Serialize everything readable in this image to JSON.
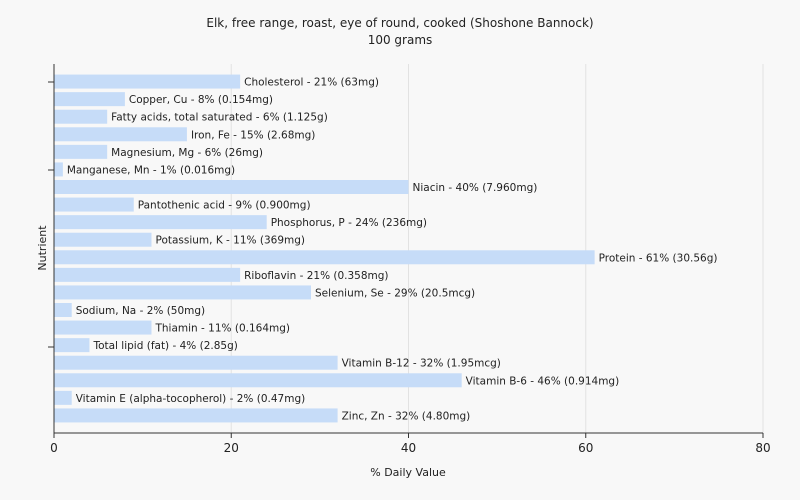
{
  "chart_data": {
    "type": "bar",
    "orientation": "horizontal",
    "title": "Elk, free range, roast, eye of round, cooked (Shoshone Bannock)",
    "subtitle": "100 grams",
    "xlabel": "% Daily Value",
    "ylabel": "Nutrient",
    "xlim": [
      0,
      80
    ],
    "xticks": [
      "0",
      "20",
      "40",
      "60",
      "80"
    ],
    "grid": true,
    "bar_color": "#c6dcf8",
    "categories": [
      "Cholesterol",
      "Copper, Cu",
      "Fatty acids, total saturated",
      "Iron, Fe",
      "Magnesium, Mg",
      "Manganese, Mn",
      "Niacin",
      "Pantothenic acid",
      "Phosphorus, P",
      "Potassium, K",
      "Protein",
      "Riboflavin",
      "Selenium, Se",
      "Sodium, Na",
      "Thiamin",
      "Total lipid (fat)",
      "Vitamin B-12",
      "Vitamin B-6",
      "Vitamin E (alpha-tocopherol)",
      "Zinc, Zn"
    ],
    "values": [
      21,
      8,
      6,
      15,
      6,
      1,
      40,
      9,
      24,
      11,
      61,
      21,
      29,
      2,
      11,
      4,
      32,
      46,
      2,
      32
    ],
    "labels": [
      "Cholesterol - 21% (63mg)",
      "Copper, Cu - 8% (0.154mg)",
      "Fatty acids, total saturated - 6% (1.125g)",
      "Iron, Fe - 15% (2.68mg)",
      "Magnesium, Mg - 6% (26mg)",
      "Manganese, Mn - 1% (0.016mg)",
      "Niacin - 40% (7.960mg)",
      "Pantothenic acid - 9% (0.900mg)",
      "Phosphorus, P - 24% (236mg)",
      "Potassium, K - 11% (369mg)",
      "Protein - 61% (30.56g)",
      "Riboflavin - 21% (0.358mg)",
      "Selenium, Se - 29% (20.5mcg)",
      "Sodium, Na - 2% (50mg)",
      "Thiamin - 11% (0.164mg)",
      "Total lipid (fat) - 4% (2.85g)",
      "Vitamin B-12 - 32% (1.95mcg)",
      "Vitamin B-6 - 46% (0.914mg)",
      "Vitamin E (alpha-tocopherol) - 2% (0.47mg)",
      "Zinc, Zn - 32% (4.80mg)"
    ]
  }
}
